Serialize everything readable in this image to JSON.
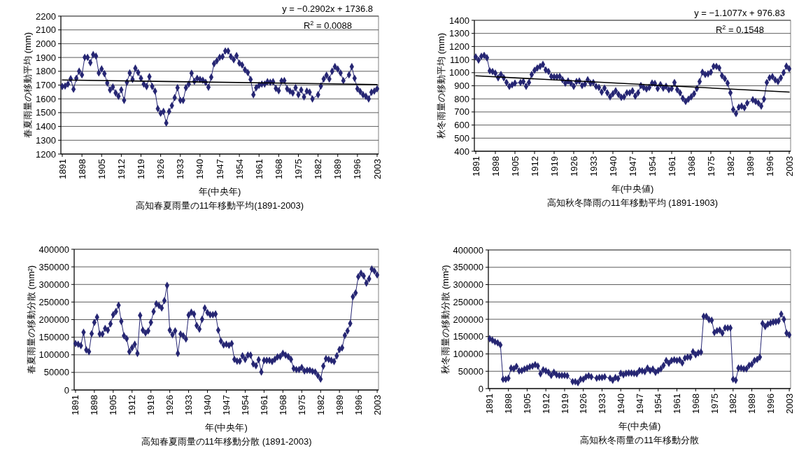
{
  "chart_data": [
    {
      "type": "line",
      "title": "高知春夏雨量の11年移動平均(1891-2003)",
      "xlabel": "年(中央年)",
      "ylabel": "春夏雨量の移動平均 (mm)",
      "xlim": [
        1890.5,
        2003.5
      ],
      "xticks": [
        1891,
        1898,
        1905,
        1912,
        1919,
        1926,
        1933,
        1940,
        1947,
        1954,
        1961,
        1968,
        1975,
        1982,
        1989,
        1996,
        2003
      ],
      "ylim": [
        1200,
        2200
      ],
      "yticks": [
        1200,
        1300,
        1400,
        1500,
        1600,
        1700,
        1800,
        1900,
        2000,
        2100,
        2200
      ],
      "grid": "y",
      "marker": "diamond",
      "annotations": [
        "y = −0.2902x + 1736.8",
        "R$^{2}$ = 0.0088"
      ],
      "series": [
        {
          "color": "#262673",
          "x": [
            1891,
            1892,
            1893,
            1894,
            1895,
            1896,
            1897,
            1898,
            1899,
            1900,
            1901,
            1902,
            1903,
            1904,
            1905,
            1906,
            1907,
            1908,
            1909,
            1910,
            1911,
            1912,
            1913,
            1914,
            1915,
            1916,
            1917,
            1918,
            1919,
            1920,
            1921,
            1922,
            1923,
            1924,
            1925,
            1926,
            1927,
            1928,
            1929,
            1930,
            1931,
            1932,
            1933,
            1934,
            1935,
            1936,
            1937,
            1938,
            1939,
            1940,
            1941,
            1942,
            1943,
            1944,
            1945,
            1946,
            1947,
            1948,
            1949,
            1950,
            1951,
            1952,
            1953,
            1954,
            1955,
            1956,
            1957,
            1958,
            1959,
            1960,
            1961,
            1962,
            1963,
            1964,
            1965,
            1966,
            1967,
            1968,
            1969,
            1970,
            1971,
            1972,
            1973,
            1974,
            1975,
            1976,
            1977,
            1978,
            1979,
            1980,
            1982,
            1983,
            1984,
            1985,
            1986,
            1987,
            1988,
            1989,
            1990,
            1991,
            1993,
            1994,
            1995,
            1996,
            1997,
            1998,
            1999,
            2000,
            2001,
            2002,
            2003
          ],
          "values": [
            1690,
            1693,
            1707,
            1746,
            1670,
            1749,
            1800,
            1774,
            1901,
            1901,
            1862,
            1921,
            1910,
            1788,
            1817,
            1783,
            1715,
            1665,
            1686,
            1643,
            1619,
            1666,
            1589,
            1720,
            1788,
            1741,
            1822,
            1791,
            1749,
            1707,
            1690,
            1761,
            1690,
            1656,
            1529,
            1496,
            1509,
            1425,
            1509,
            1551,
            1609,
            1681,
            1589,
            1589,
            1681,
            1707,
            1786,
            1727,
            1749,
            1741,
            1735,
            1720,
            1685,
            1757,
            1855,
            1876,
            1901,
            1906,
            1947,
            1947,
            1906,
            1884,
            1913,
            1859,
            1845,
            1811,
            1791,
            1741,
            1630,
            1681,
            1698,
            1707,
            1707,
            1724,
            1720,
            1724,
            1676,
            1659,
            1730,
            1732,
            1673,
            1656,
            1643,
            1681,
            1630,
            1665,
            1614,
            1656,
            1648,
            1600,
            1630,
            1693,
            1744,
            1771,
            1744,
            1800,
            1833,
            1816,
            1788,
            1732,
            1774,
            1833,
            1749,
            1673,
            1653,
            1630,
            1619,
            1600,
            1648,
            1656,
            1673
          ]
        },
        {
          "type": "line",
          "color": "#000000",
          "marker": "none",
          "x": [
            1891,
            2003
          ],
          "values": [
            1737,
            1704
          ]
        }
      ]
    },
    {
      "type": "line",
      "title": "高知秋冬降雨の11年移動平均 (1891-1903)",
      "xlabel": "年(中央値)",
      "ylabel": "秋冬雨量の移動平均 (mm)",
      "xlim": [
        1890.5,
        2003.5
      ],
      "xticks": [
        1891,
        1898,
        1905,
        1912,
        1919,
        1926,
        1933,
        1940,
        1947,
        1954,
        1961,
        1968,
        1975,
        1982,
        1989,
        1996,
        2003
      ],
      "ylim": [
        400,
        1400
      ],
      "yticks": [
        400,
        500,
        600,
        700,
        800,
        900,
        1000,
        1100,
        1200,
        1300,
        1400
      ],
      "grid": "y",
      "marker": "diamond",
      "annotations": [
        "y = −1.1077x + 976.83",
        "R$^{2}$ = 0.1548"
      ],
      "series": [
        {
          "color": "#262673",
          "x": [
            1891,
            1892,
            1893,
            1894,
            1895,
            1896,
            1897,
            1898,
            1899,
            1900,
            1901,
            1902,
            1903,
            1904,
            1905,
            1907,
            1908,
            1909,
            1910,
            1911,
            1912,
            1913,
            1914,
            1915,
            1916,
            1917,
            1918,
            1919,
            1920,
            1921,
            1922,
            1923,
            1924,
            1925,
            1926,
            1927,
            1928,
            1929,
            1930,
            1931,
            1932,
            1933,
            1934,
            1935,
            1936,
            1937,
            1938,
            1939,
            1940,
            1941,
            1942,
            1943,
            1944,
            1945,
            1946,
            1947,
            1948,
            1949,
            1950,
            1951,
            1952,
            1953,
            1954,
            1955,
            1956,
            1957,
            1958,
            1959,
            1960,
            1961,
            1962,
            1963,
            1964,
            1965,
            1966,
            1967,
            1968,
            1969,
            1970,
            1971,
            1972,
            1973,
            1974,
            1975,
            1976,
            1977,
            1978,
            1979,
            1980,
            1981,
            1982,
            1983,
            1984,
            1985,
            1986,
            1987,
            1988,
            1990,
            1991,
            1992,
            1993,
            1994,
            1995,
            1996,
            1997,
            1998,
            1999,
            2000,
            2001,
            2002,
            2003
          ],
          "values": [
            1120,
            1096,
            1125,
            1132,
            1114,
            1014,
            1009,
            996,
            961,
            986,
            961,
            925,
            895,
            907,
            920,
            925,
            932,
            896,
            925,
            986,
            1018,
            1036,
            1048,
            1063,
            1021,
            1009,
            971,
            968,
            968,
            971,
            946,
            920,
            936,
            920,
            896,
            932,
            936,
            902,
            914,
            946,
            920,
            925,
            895,
            887,
            852,
            882,
            846,
            816,
            839,
            861,
            834,
            812,
            816,
            846,
            846,
            861,
            821,
            846,
            902,
            887,
            875,
            887,
            920,
            918,
            879,
            909,
            882,
            896,
            870,
            879,
            925,
            870,
            846,
            804,
            780,
            798,
            816,
            839,
            879,
            932,
            1004,
            986,
            991,
            1004,
            1048,
            1048,
            1036,
            977,
            954,
            920,
            846,
            718,
            688,
            736,
            745,
            732,
            768,
            793,
            780,
            768,
            745,
            798,
            925,
            961,
            970,
            945,
            932,
            960,
            1000,
            1050,
            1030
          ]
        },
        {
          "type": "line",
          "color": "#000000",
          "marker": "none",
          "x": [
            1891,
            2003
          ],
          "values": [
            976,
            852
          ]
        }
      ]
    },
    {
      "type": "line",
      "title": "高知春夏雨量の11年移動分散 (1891-2003)",
      "xlabel": "年(中央年)",
      "ylabel": "春夏雨量の移動分散 (mm²)",
      "xlim": [
        1890.5,
        2003.5
      ],
      "xticks": [
        1891,
        1898,
        1905,
        1912,
        1919,
        1926,
        1933,
        1940,
        1947,
        1954,
        1961,
        1968,
        1975,
        1982,
        1989,
        1996,
        2003
      ],
      "ylim": [
        0,
        400000
      ],
      "yticks": [
        0,
        50000,
        100000,
        150000,
        200000,
        250000,
        300000,
        350000,
        400000
      ],
      "grid": "y",
      "marker": "diamond",
      "series": [
        {
          "color": "#262673",
          "x": [
            1891,
            1892,
            1893,
            1894,
            1895,
            1896,
            1897,
            1898,
            1899,
            1900,
            1901,
            1902,
            1903,
            1904,
            1905,
            1906,
            1907,
            1908,
            1909,
            1910,
            1911,
            1912,
            1913,
            1914,
            1915,
            1916,
            1917,
            1918,
            1919,
            1920,
            1921,
            1922,
            1923,
            1924,
            1925,
            1926,
            1927,
            1928,
            1929,
            1930,
            1931,
            1932,
            1933,
            1934,
            1935,
            1936,
            1937,
            1938,
            1939,
            1940,
            1941,
            1942,
            1943,
            1944,
            1945,
            1946,
            1947,
            1948,
            1949,
            1950,
            1951,
            1952,
            1953,
            1954,
            1955,
            1956,
            1957,
            1958,
            1959,
            1960,
            1961,
            1962,
            1963,
            1964,
            1965,
            1966,
            1967,
            1968,
            1969,
            1970,
            1971,
            1972,
            1973,
            1974,
            1975,
            1976,
            1977,
            1978,
            1979,
            1980,
            1981,
            1982,
            1983,
            1984,
            1985,
            1986,
            1987,
            1988,
            1989,
            1990,
            1991,
            1992,
            1993,
            1994,
            1995,
            1996,
            1997,
            1998,
            1999,
            2000,
            2001,
            2002,
            2003
          ],
          "values": [
            132000,
            130000,
            126000,
            164000,
            114000,
            109000,
            160000,
            192000,
            207000,
            159000,
            159000,
            175000,
            170000,
            188000,
            214000,
            223000,
            241000,
            195000,
            154000,
            146000,
            109000,
            120000,
            130000,
            104000,
            212000,
            170000,
            162000,
            168000,
            192000,
            223000,
            245000,
            240000,
            233000,
            254000,
            297000,
            170000,
            157000,
            168000,
            104000,
            159000,
            154000,
            145000,
            213000,
            221000,
            216000,
            183000,
            173000,
            201000,
            233000,
            220000,
            214000,
            214000,
            216000,
            170000,
            139000,
            128000,
            130000,
            127000,
            132000,
            87000,
            82000,
            82000,
            97000,
            87000,
            99000,
            99000,
            74000,
            69000,
            86000,
            51000,
            84000,
            84000,
            84000,
            81000,
            87000,
            94000,
            95000,
            104000,
            99000,
            95000,
            87000,
            61000,
            58000,
            58000,
            64000,
            54000,
            56000,
            56000,
            53000,
            51000,
            41000,
            31000,
            68000,
            89000,
            87000,
            84000,
            81000,
            97000,
            115000,
            120000,
            155000,
            168000,
            189000,
            265000,
            276000,
            322000,
            332000,
            324000,
            304000,
            316000,
            344000,
            338000,
            327000
          ]
        }
      ]
    },
    {
      "type": "line",
      "title": "高知秋冬雨量の11年移動分散",
      "xlabel": "年(中央値)",
      "ylabel": "秋冬雨量の移動分散 (mm²)",
      "xlim": [
        1890.5,
        2003.5
      ],
      "xticks": [
        1891,
        1898,
        1905,
        1912,
        1919,
        1926,
        1933,
        1940,
        1947,
        1954,
        1961,
        1968,
        1975,
        1982,
        1989,
        1996,
        2003
      ],
      "ylim": [
        0,
        400000
      ],
      "yticks": [
        0,
        50000,
        100000,
        150000,
        200000,
        250000,
        300000,
        350000,
        400000
      ],
      "grid": "y",
      "marker": "diamond",
      "series": [
        {
          "color": "#262673",
          "x": [
            1891,
            1892,
            1893,
            1894,
            1895,
            1896,
            1897,
            1898,
            1899,
            1900,
            1901,
            1902,
            1903,
            1904,
            1905,
            1906,
            1907,
            1908,
            1909,
            1910,
            1911,
            1912,
            1913,
            1914,
            1915,
            1916,
            1917,
            1918,
            1919,
            1920,
            1922,
            1923,
            1924,
            1925,
            1926,
            1927,
            1928,
            1929,
            1931,
            1932,
            1933,
            1934,
            1936,
            1937,
            1938,
            1939,
            1940,
            1941,
            1942,
            1943,
            1944,
            1945,
            1946,
            1947,
            1948,
            1949,
            1950,
            1951,
            1952,
            1953,
            1954,
            1955,
            1956,
            1957,
            1958,
            1959,
            1960,
            1961,
            1962,
            1963,
            1964,
            1965,
            1966,
            1967,
            1968,
            1969,
            1970,
            1971,
            1972,
            1973,
            1974,
            1975,
            1976,
            1977,
            1978,
            1979,
            1980,
            1981,
            1982,
            1983,
            1984,
            1985,
            1986,
            1987,
            1988,
            1989,
            1990,
            1991,
            1992,
            1993,
            1994,
            1995,
            1996,
            1997,
            1998,
            1999,
            2000,
            2001,
            2002,
            2003
          ],
          "values": [
            144000,
            140000,
            135000,
            132000,
            126000,
            27000,
            27000,
            30000,
            59000,
            57000,
            64000,
            51000,
            52000,
            56000,
            59000,
            63000,
            65000,
            69000,
            65000,
            43000,
            54000,
            51000,
            47000,
            38000,
            47000,
            40000,
            38000,
            38000,
            38000,
            37000,
            20000,
            20000,
            17000,
            27000,
            27000,
            34000,
            37000,
            34000,
            30000,
            32000,
            32000,
            34000,
            30000,
            24000,
            32000,
            29000,
            44000,
            40000,
            44000,
            45000,
            45000,
            44000,
            43000,
            52000,
            51000,
            49000,
            59000,
            52000,
            56000,
            47000,
            52000,
            57000,
            67000,
            81000,
            73000,
            81000,
            83000,
            81000,
            83000,
            74000,
            88000,
            91000,
            91000,
            106000,
            98000,
            103000,
            105000,
            208000,
            208000,
            199000,
            197000,
            162000,
            167000,
            169000,
            160000,
            175000,
            175000,
            175000,
            27000,
            24000,
            59000,
            59000,
            57000,
            57000,
            67000,
            70000,
            81000,
            84000,
            91000,
            188000,
            179000,
            186000,
            189000,
            192000,
            193000,
            195000,
            215000,
            200000,
            160000,
            155000
          ]
        }
      ]
    }
  ]
}
